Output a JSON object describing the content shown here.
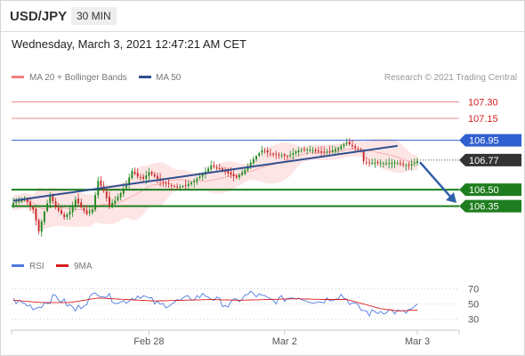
{
  "header": {
    "symbol": "USD/JPY",
    "timeframe": "30 MIN"
  },
  "datetime": "Wednesday, March 3, 2021 12:47:21 AM CET",
  "legend": {
    "ma20": "MA 20 + Bollinger Bands",
    "ma50": "MA 50",
    "credit": "Research © 2021 Trading Central"
  },
  "rsi_legend": {
    "rsi": "RSI",
    "ma": "9MA"
  },
  "colors": {
    "candle_up": "#1e8a1e",
    "candle_down": "#c62828",
    "bollinger_fill": "#fde2e2",
    "ma20": "#f08080",
    "ma50": "#2f4f8f",
    "resistance": "#f48a8a",
    "pivot": "#2f5fd0",
    "support": "#1e7d1e",
    "price_tag": "#333333",
    "rsi": "#4d7be0",
    "rsi_ma": "#d81b1b",
    "arrow": "#2e5fa8"
  },
  "chart_data": [
    {
      "type": "candlestick",
      "title": "USD/JPY 30 MIN",
      "x_ticks": [
        "Feb 28",
        "Mar 2",
        "Mar 3"
      ],
      "ylim": [
        105.95,
        107.45
      ],
      "levels": [
        {
          "value": 107.3,
          "label": "107.30",
          "kind": "resistance"
        },
        {
          "value": 107.15,
          "label": "107.15",
          "kind": "resistance"
        },
        {
          "value": 106.95,
          "label": "106.95",
          "kind": "pivot"
        },
        {
          "value": 106.5,
          "label": "106.50",
          "kind": "support"
        },
        {
          "value": 106.35,
          "label": "106.35",
          "kind": "support"
        }
      ],
      "last_price": {
        "value": 106.77,
        "label": "106.77"
      },
      "anchors": [
        [
          0,
          106.38
        ],
        [
          4,
          106.42
        ],
        [
          7,
          106.32
        ],
        [
          9,
          106.12
        ],
        [
          11,
          106.3
        ],
        [
          13,
          106.45
        ],
        [
          15,
          106.34
        ],
        [
          18,
          106.25
        ],
        [
          20,
          106.3
        ],
        [
          22,
          106.41
        ],
        [
          24,
          106.34
        ],
        [
          26,
          106.28
        ],
        [
          28,
          106.32
        ],
        [
          30,
          106.58
        ],
        [
          32,
          106.49
        ],
        [
          34,
          106.36
        ],
        [
          36,
          106.4
        ],
        [
          38,
          106.47
        ],
        [
          40,
          106.55
        ],
        [
          42,
          106.67
        ],
        [
          44,
          106.62
        ],
        [
          46,
          106.6
        ],
        [
          48,
          106.66
        ],
        [
          50,
          106.62
        ],
        [
          52,
          106.58
        ],
        [
          55,
          106.55
        ],
        [
          58,
          106.52
        ],
        [
          61,
          106.54
        ],
        [
          64,
          106.58
        ],
        [
          67,
          106.64
        ],
        [
          70,
          106.72
        ],
        [
          73,
          106.69
        ],
        [
          76,
          106.65
        ],
        [
          79,
          106.61
        ],
        [
          82,
          106.68
        ],
        [
          85,
          106.78
        ],
        [
          88,
          106.86
        ],
        [
          91,
          106.83
        ],
        [
          94,
          106.82
        ],
        [
          97,
          106.8
        ],
        [
          100,
          106.85
        ],
        [
          103,
          106.87
        ],
        [
          106,
          106.86
        ],
        [
          109,
          106.84
        ],
        [
          112,
          106.85
        ],
        [
          115,
          106.88
        ],
        [
          118,
          106.93
        ],
        [
          121,
          106.88
        ],
        [
          123,
          106.85
        ],
        [
          124,
          106.76
        ],
        [
          126,
          106.74
        ],
        [
          129,
          106.75
        ],
        [
          132,
          106.74
        ],
        [
          135,
          106.75
        ],
        [
          138,
          106.73
        ],
        [
          140,
          106.72
        ],
        [
          143,
          106.76
        ]
      ],
      "ma50_trendline": [
        106.4,
        106.9
      ],
      "forecast_arrow": {
        "from": 106.75,
        "to": 106.38
      }
    },
    {
      "type": "line",
      "title": "RSI",
      "ylim": [
        25,
        80
      ],
      "y_ticks": [
        70,
        50,
        30
      ],
      "series": [
        {
          "name": "RSI"
        },
        {
          "name": "9MA"
        }
      ],
      "rsi_anchors": [
        [
          0,
          55
        ],
        [
          8,
          45
        ],
        [
          15,
          60
        ],
        [
          22,
          42
        ],
        [
          30,
          66
        ],
        [
          38,
          52
        ],
        [
          45,
          62
        ],
        [
          52,
          48
        ],
        [
          60,
          55
        ],
        [
          68,
          62
        ],
        [
          76,
          48
        ],
        [
          84,
          64
        ],
        [
          92,
          54
        ],
        [
          100,
          60
        ],
        [
          108,
          53
        ],
        [
          116,
          62
        ],
        [
          122,
          45
        ],
        [
          126,
          38
        ],
        [
          132,
          42
        ],
        [
          138,
          38
        ],
        [
          143,
          46
        ]
      ],
      "rsi_ma_anchors": [
        [
          0,
          55
        ],
        [
          10,
          52
        ],
        [
          20,
          52
        ],
        [
          30,
          58
        ],
        [
          40,
          56
        ],
        [
          50,
          54
        ],
        [
          60,
          55
        ],
        [
          70,
          56
        ],
        [
          80,
          55
        ],
        [
          90,
          56
        ],
        [
          100,
          57
        ],
        [
          110,
          56
        ],
        [
          118,
          56
        ],
        [
          124,
          50
        ],
        [
          130,
          44
        ],
        [
          136,
          41
        ],
        [
          143,
          42
        ]
      ]
    }
  ]
}
